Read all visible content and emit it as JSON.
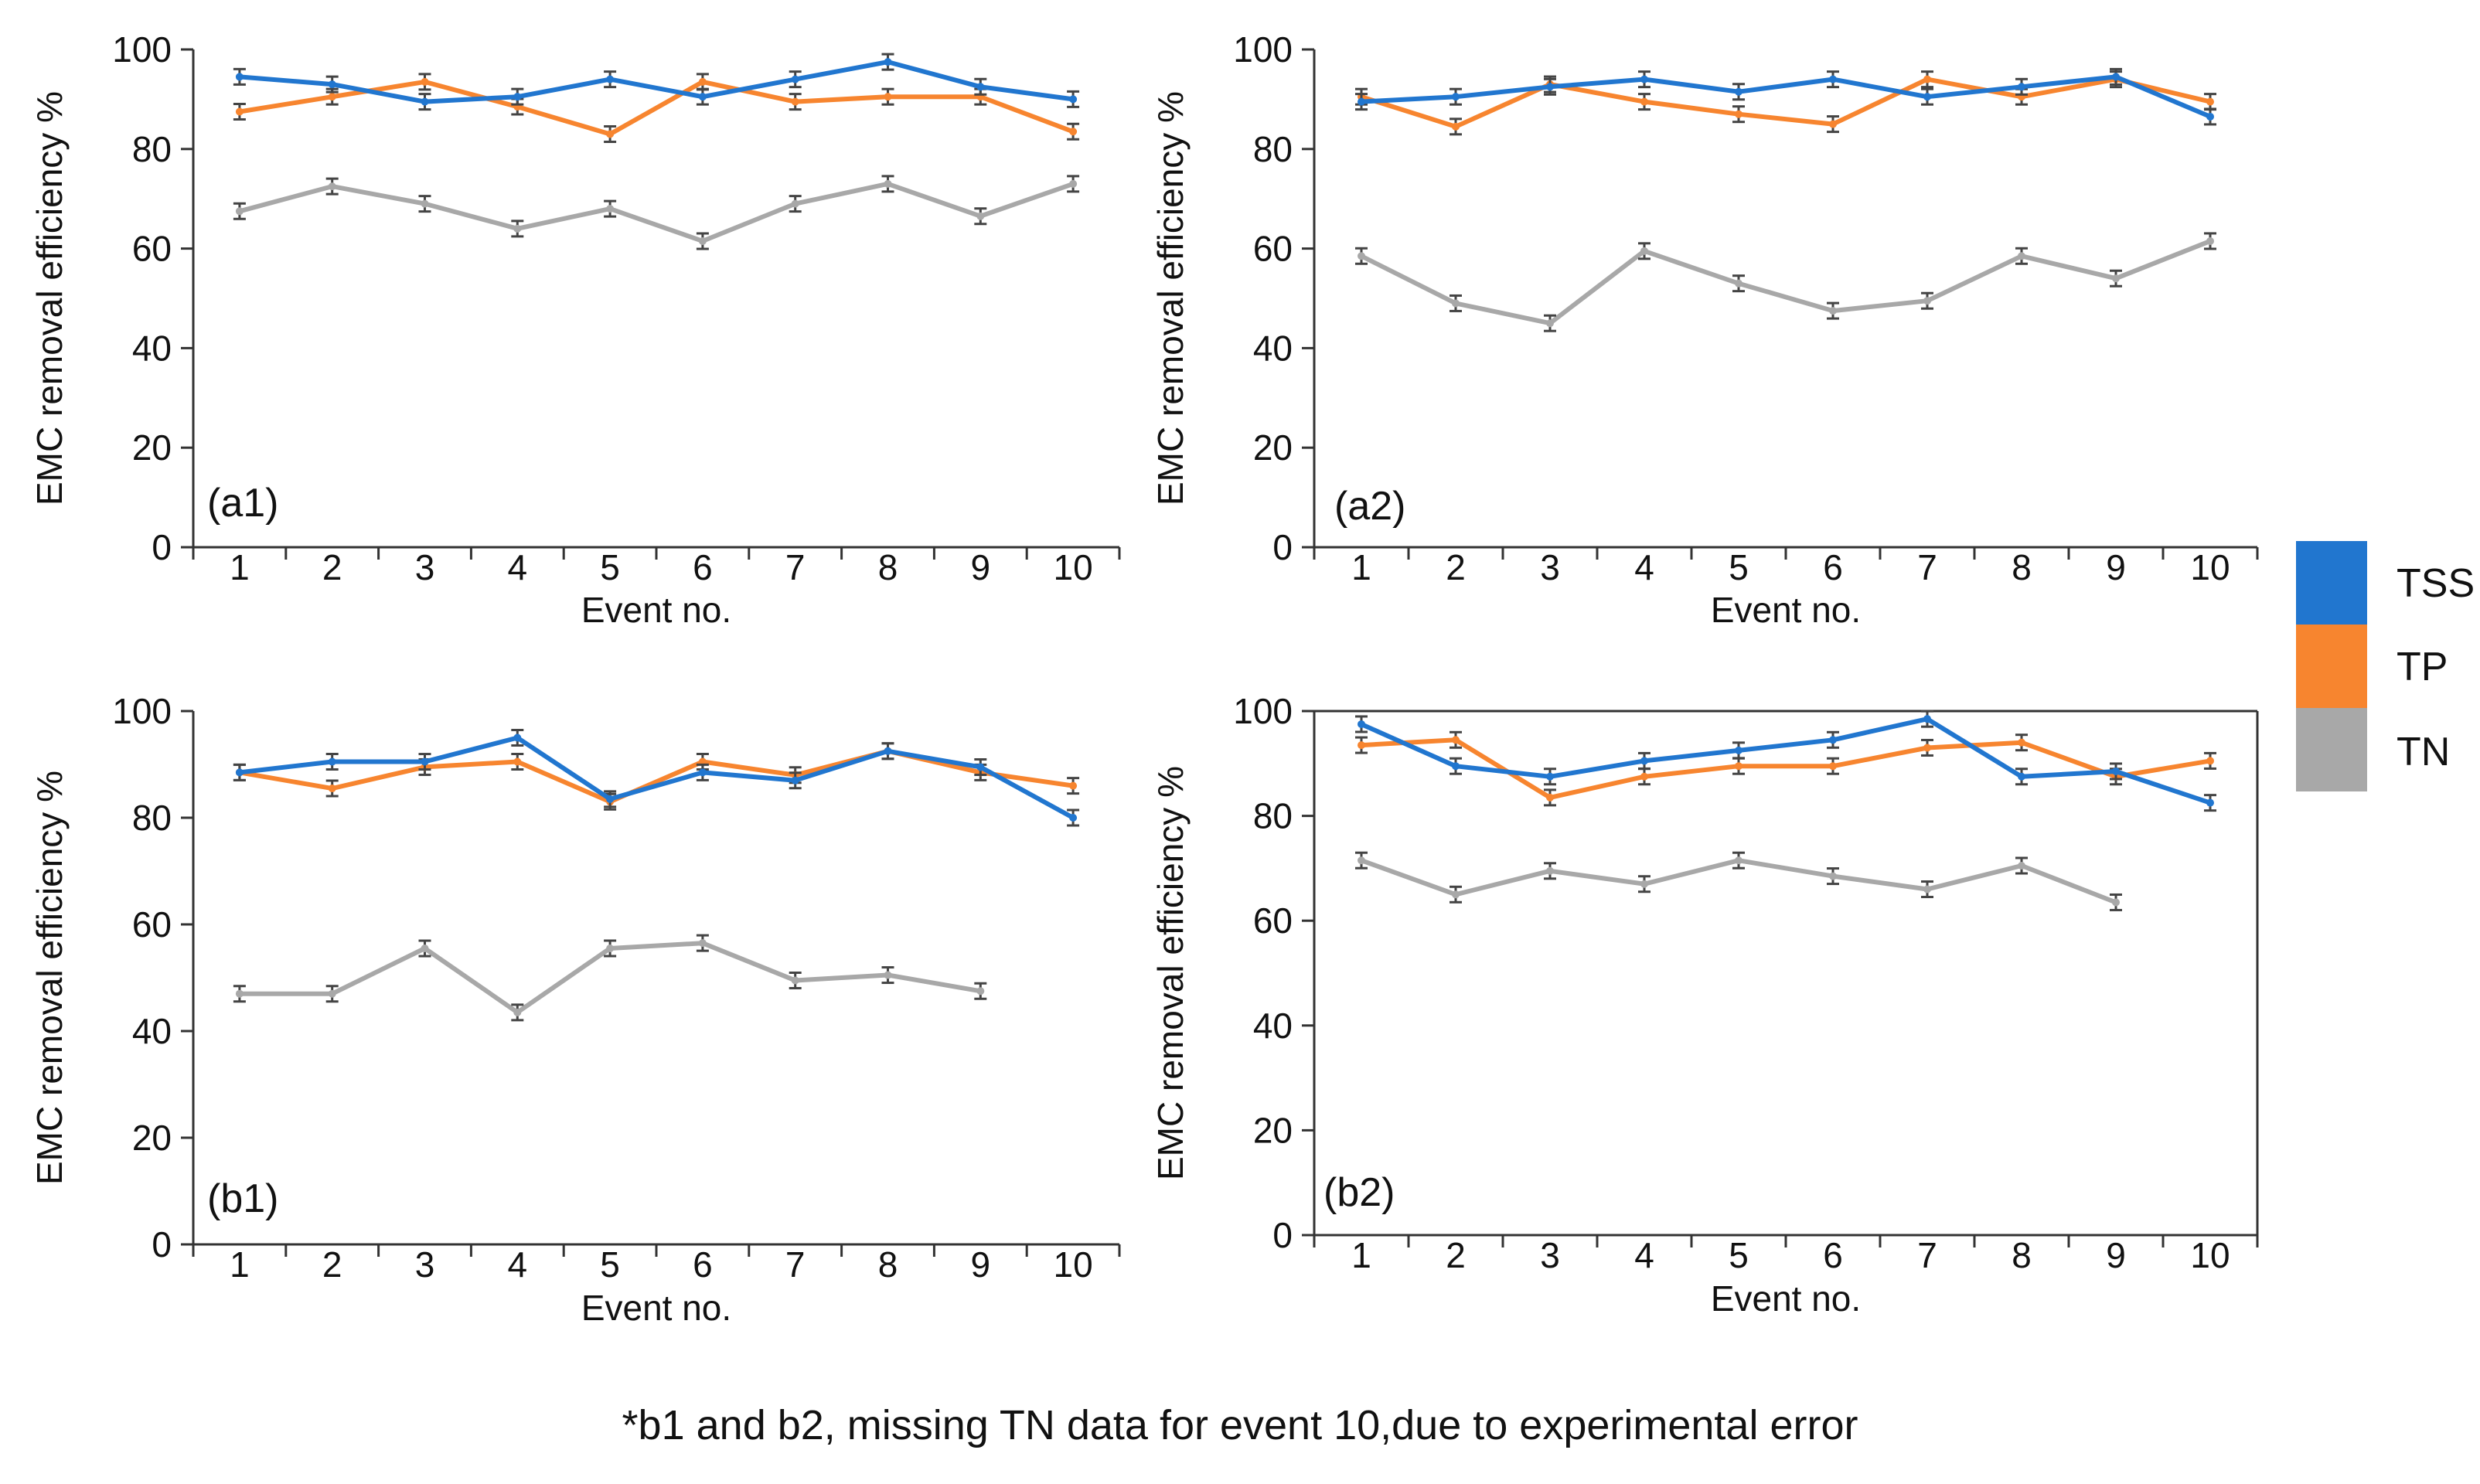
{
  "series_colors": {
    "TSS": "#2176cf",
    "TP": "#f7852f",
    "TN": "#a8a8a8"
  },
  "legend": [
    {
      "key": "TSS",
      "label": "TSS"
    },
    {
      "key": "TP",
      "label": "TP"
    },
    {
      "key": "TN",
      "label": "TN"
    }
  ],
  "footnote": "*b1 and b2, missing TN data  for event 10,due to experimental error",
  "chart_data": [
    {
      "type": "line",
      "panel": "(a1)",
      "xlabel": "Event no.",
      "ylabel": "EMC removal efficiency %",
      "ylim": [
        0,
        100
      ],
      "yticks": [
        0,
        20,
        40,
        60,
        80,
        100
      ],
      "categories": [
        "1",
        "2",
        "3",
        "4",
        "5",
        "6",
        "7",
        "8",
        "9",
        "10"
      ],
      "series": [
        {
          "name": "TSS",
          "values": [
            94.5,
            93,
            89.5,
            90.5,
            94,
            90.5,
            94,
            97.5,
            92.5,
            90
          ]
        },
        {
          "name": "TP",
          "values": [
            87.5,
            90.5,
            93.5,
            88.5,
            83,
            93.5,
            89.5,
            90.5,
            90.5,
            83.5
          ]
        },
        {
          "name": "TN",
          "values": [
            67.5,
            72.5,
            69,
            64,
            68,
            61.5,
            69,
            73,
            66.5,
            73
          ]
        }
      ]
    },
    {
      "type": "line",
      "panel": "(a2)",
      "xlabel": "Event no.",
      "ylabel": "EMC removal efficiency %",
      "ylim": [
        0,
        100
      ],
      "yticks": [
        0,
        20,
        40,
        60,
        80,
        100
      ],
      "categories": [
        "1",
        "2",
        "3",
        "4",
        "5",
        "6",
        "7",
        "8",
        "9",
        "10"
      ],
      "series": [
        {
          "name": "TSS",
          "values": [
            89.5,
            90.5,
            92.5,
            94,
            91.5,
            94,
            90.5,
            92.5,
            94.5,
            86.5
          ]
        },
        {
          "name": "TP",
          "values": [
            90.5,
            84.5,
            93,
            89.5,
            87,
            85,
            94,
            90.5,
            94,
            89.5
          ]
        },
        {
          "name": "TN",
          "values": [
            58.5,
            49,
            45,
            59.5,
            53,
            47.5,
            49.5,
            58.5,
            54,
            61.5
          ]
        }
      ]
    },
    {
      "type": "line",
      "panel": "(b1)",
      "xlabel": "Event no.",
      "ylabel": "EMC removal efficiency %",
      "ylim": [
        0,
        100
      ],
      "yticks": [
        0,
        20,
        40,
        60,
        80,
        100
      ],
      "categories": [
        "1",
        "2",
        "3",
        "4",
        "5",
        "6",
        "7",
        "8",
        "9",
        "10"
      ],
      "series": [
        {
          "name": "TSS",
          "values": [
            88.5,
            90.5,
            90.5,
            95,
            83.5,
            88.5,
            87,
            92.5,
            89.5,
            80
          ]
        },
        {
          "name": "TP",
          "values": [
            88.5,
            85.5,
            89.5,
            90.5,
            83,
            90.5,
            88,
            92.5,
            88.5,
            86
          ]
        },
        {
          "name": "TN",
          "values": [
            47,
            47,
            55.5,
            43.5,
            55.5,
            56.5,
            49.5,
            50.5,
            47.5,
            null
          ]
        }
      ]
    },
    {
      "type": "line",
      "panel": "(b2)",
      "xlabel": "Event no.",
      "ylabel": "EMC removal efficiency %",
      "ylim": [
        0,
        100
      ],
      "yticks": [
        0,
        20,
        40,
        60,
        80,
        100
      ],
      "categories": [
        "1",
        "2",
        "3",
        "4",
        "5",
        "6",
        "7",
        "8",
        "9",
        "10"
      ],
      "series": [
        {
          "name": "TSS",
          "values": [
            97.5,
            89.5,
            87.5,
            90.5,
            92.5,
            94.5,
            98.5,
            87.5,
            88.5,
            82.5
          ]
        },
        {
          "name": "TP",
          "values": [
            93.5,
            94.5,
            83.5,
            87.5,
            89.5,
            89.5,
            93,
            94,
            87.5,
            90.5
          ]
        },
        {
          "name": "TN",
          "values": [
            71.5,
            65,
            69.5,
            67,
            71.5,
            68.5,
            66,
            70.5,
            63.5,
            null
          ]
        }
      ]
    }
  ]
}
